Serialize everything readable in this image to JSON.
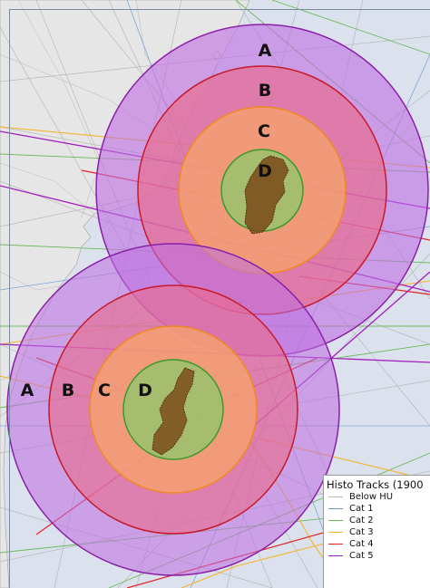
{
  "map": {
    "rings": [
      {
        "name": "north",
        "labels": [
          {
            "letter": "A"
          },
          {
            "letter": "B"
          },
          {
            "letter": "C"
          },
          {
            "letter": "D"
          }
        ]
      },
      {
        "name": "south",
        "labels": [
          {
            "letter": "A"
          },
          {
            "letter": "B"
          },
          {
            "letter": "C"
          },
          {
            "letter": "D"
          }
        ]
      }
    ],
    "zone_colors": {
      "A": "#c070e0",
      "B": "#e86a8c",
      "C": "#f7a46a",
      "D": "#94c46c",
      "A_stroke": "#8a1fa8",
      "B_stroke": "#c81a28",
      "C_stroke": "#f08a1e",
      "D_stroke": "#3a9a2c",
      "island_fill": "#7a4a1a"
    }
  },
  "legend": {
    "title": "Histo Tracks (1900",
    "items": [
      {
        "label": "Below HU",
        "color": "#b8b8b8"
      },
      {
        "label": "Cat 1",
        "color": "#6699cc"
      },
      {
        "label": "Cat 2",
        "color": "#66bb55"
      },
      {
        "label": "Cat 3",
        "color": "#f5b82a"
      },
      {
        "label": "Cat 4",
        "color": "#e02020"
      },
      {
        "label": "Cat 5",
        "color": "#a020c0"
      }
    ]
  }
}
